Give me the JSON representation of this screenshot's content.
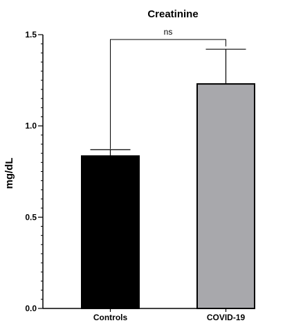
{
  "chart_data": {
    "type": "bar",
    "title": "Creatinine",
    "xlabel": "",
    "ylabel": "mg/dL",
    "ylim": [
      0,
      1.5
    ],
    "yticks": [
      "0.0",
      "0.5",
      "1.0",
      "1.5"
    ],
    "categories": [
      "Controls",
      "COVID-19"
    ],
    "values": [
      0.835,
      1.23
    ],
    "errors": [
      0.035,
      0.19
    ],
    "colors": [
      "#000000",
      "#a8a8ac"
    ],
    "significance": {
      "label": "ns",
      "between": [
        0,
        1
      ]
    },
    "grid": false
  }
}
